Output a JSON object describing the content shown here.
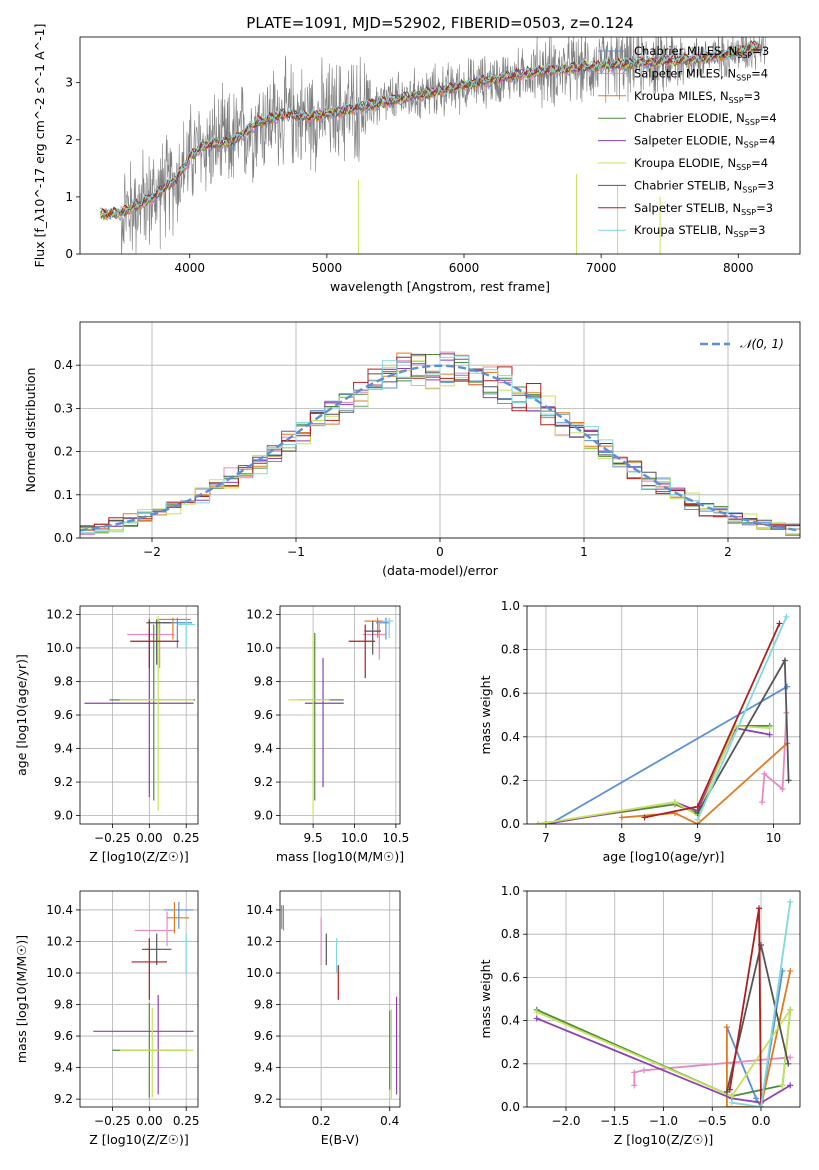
{
  "title": "PLATE=1091, MJD=52902, FIBERID=0503, z=0.124",
  "colors": {
    "Chabrier MILES": "#5b8fd6",
    "Salpeter MILES": "#e58ac2",
    "Kroupa MILES": "#e07b1f",
    "Chabrier ELODIE": "#4f8a3c",
    "Salpeter ELODIE": "#8e3fb5",
    "Kroupa ELODIE": "#c4e35a",
    "Chabrier STELIB": "#555555",
    "Salpeter STELIB": "#b01f1f",
    "Kroupa STELIB": "#7fd9dc",
    "data": "#7f7f7f",
    "normal": "#5b8fd6"
  },
  "chart_data": [
    {
      "id": "spectrum",
      "type": "line",
      "xlabel": "wavelength [Angstrom, rest frame]",
      "ylabel": "Flux [f_λ10^-17 erg cm^-2 s^-1 A^-1]",
      "xlim": [
        3200,
        8450
      ],
      "ylim": [
        0,
        3.8
      ],
      "xticks": [
        4000,
        5000,
        6000,
        7000,
        8000
      ],
      "yticks": [
        0,
        1,
        2,
        3
      ],
      "grid": false,
      "legend_position": "right",
      "legend": [
        {
          "name": "Chabrier MILES",
          "sub": "SSP",
          "n": "3"
        },
        {
          "name": "Salpeter MILES",
          "sub": "SSP",
          "n": "4"
        },
        {
          "name": "Kroupa MILES",
          "sub": "SSP",
          "n": "3"
        },
        {
          "name": "Chabrier ELODIE",
          "sub": "SSP",
          "n": "4"
        },
        {
          "name": "Salpeter ELODIE",
          "sub": "SSP",
          "n": "4"
        },
        {
          "name": "Kroupa ELODIE",
          "sub": "SSP",
          "n": "4"
        },
        {
          "name": "Chabrier STELIB",
          "sub": "SSP",
          "n": "3"
        },
        {
          "name": "Salpeter STELIB",
          "sub": "SSP",
          "n": "3"
        },
        {
          "name": "Kroupa STELIB",
          "sub": "SSP",
          "n": "3"
        }
      ],
      "model_curve": {
        "x": [
          3350,
          3500,
          3700,
          3900,
          4000,
          4100,
          4300,
          4500,
          4700,
          4860,
          5000,
          5200,
          5500,
          5800,
          6000,
          6300,
          6550,
          6800,
          7000,
          7300,
          7600,
          7800,
          8000,
          8150
        ],
        "y": [
          0.7,
          0.72,
          0.95,
          1.3,
          1.7,
          1.9,
          1.95,
          2.3,
          2.45,
          2.4,
          2.45,
          2.55,
          2.7,
          2.85,
          2.95,
          3.1,
          3.2,
          3.25,
          3.3,
          3.35,
          3.4,
          3.45,
          3.55,
          3.65
        ]
      }
    },
    {
      "id": "residuals",
      "type": "line",
      "xlabel": "(data-model)/error",
      "ylabel": "Normed distribution",
      "xlim": [
        -2.5,
        2.5
      ],
      "ylim": [
        0,
        0.5
      ],
      "xticks": [
        -2,
        -1,
        0,
        1,
        2
      ],
      "yticks": [
        0.0,
        0.1,
        0.2,
        0.3,
        0.4
      ],
      "grid": true,
      "legend_position": "top-right",
      "legend_label": "𝒩(0, 1)",
      "bin_width": 0.1
    },
    {
      "id": "age_vs_Z",
      "type": "scatter",
      "xlabel": "Z [log10(Z/Z☉)]",
      "ylabel": "age  [log10(age/yr)]",
      "xlim": [
        -0.47,
        0.33
      ],
      "ylim": [
        8.95,
        10.25
      ],
      "xticks": [
        -0.25,
        0.0,
        0.25
      ],
      "yticks": [
        9.0,
        9.2,
        9.4,
        9.6,
        9.8,
        10.0,
        10.2
      ],
      "grid": true,
      "points": [
        {
          "model": "Chabrier MILES",
          "x": 0.19,
          "y": 10.15,
          "xerr": [
            0.1,
            0.1
          ],
          "yerr": [
            0.15,
            0.03
          ]
        },
        {
          "model": "Salpeter MILES",
          "x": 0.07,
          "y": 10.08,
          "xerr": [
            0.22,
            0.1
          ],
          "yerr": [
            0.2,
            0.08
          ]
        },
        {
          "model": "Kroupa MILES",
          "x": 0.16,
          "y": 10.17,
          "xerr": [
            0.1,
            0.12
          ],
          "yerr": [
            0.12,
            0.01
          ]
        },
        {
          "model": "Chabrier ELODIE",
          "x": 0.03,
          "y": 9.69,
          "xerr": [
            0.3,
            0.28
          ],
          "yerr": [
            0.6,
            0.45
          ]
        },
        {
          "model": "Salpeter ELODIE",
          "x": 0.0,
          "y": 9.67,
          "xerr": [
            0.44,
            0.3
          ],
          "yerr": [
            0.56,
            0.45
          ]
        },
        {
          "model": "Kroupa ELODIE",
          "x": 0.06,
          "y": 9.69,
          "xerr": [
            0.26,
            0.24
          ],
          "yerr": [
            0.66,
            0.5
          ]
        },
        {
          "model": "Chabrier STELIB",
          "x": 0.05,
          "y": 10.15,
          "xerr": [
            0.07,
            0.1
          ],
          "yerr": [
            0.25,
            0.02
          ]
        },
        {
          "model": "Salpeter STELIB",
          "x": 0.0,
          "y": 10.04,
          "xerr": [
            0.13,
            0.2
          ],
          "yerr": [
            0.16,
            0.13
          ]
        },
        {
          "model": "Kroupa STELIB",
          "x": 0.25,
          "y": 10.14,
          "xerr": [
            0.06,
            0.06
          ],
          "yerr": [
            0.15,
            0.03
          ]
        }
      ]
    },
    {
      "id": "age_vs_mass",
      "type": "scatter",
      "xlabel": "mass [log10(M/M☉)]",
      "ylabel": "",
      "xlim": [
        9.1,
        10.55
      ],
      "ylim": [
        8.95,
        10.25
      ],
      "xticks": [
        9.5,
        10.0,
        10.5
      ],
      "yticks": [
        9.0,
        9.2,
        9.4,
        9.6,
        9.8,
        10.0,
        10.2
      ],
      "grid": true,
      "points": [
        {
          "model": "Chabrier MILES",
          "x": 10.38,
          "y": 10.15,
          "xerr": [
            0.12,
            0.05
          ],
          "yerr": [
            0.1,
            0.03
          ]
        },
        {
          "model": "Salpeter MILES",
          "x": 10.3,
          "y": 10.08,
          "xerr": [
            0.2,
            0.07
          ],
          "yerr": [
            0.15,
            0.08
          ]
        },
        {
          "model": "Kroupa MILES",
          "x": 10.28,
          "y": 10.16,
          "xerr": [
            0.16,
            0.1
          ],
          "yerr": [
            0.1,
            0.02
          ]
        },
        {
          "model": "Chabrier ELODIE",
          "x": 9.52,
          "y": 9.69,
          "xerr": [
            0.2,
            0.35
          ],
          "yerr": [
            0.6,
            0.4
          ]
        },
        {
          "model": "Salpeter ELODIE",
          "x": 9.62,
          "y": 9.67,
          "xerr": [
            0.22,
            0.25
          ],
          "yerr": [
            0.5,
            0.27
          ]
        },
        {
          "model": "Kroupa ELODIE",
          "x": 9.5,
          "y": 9.69,
          "xerr": [
            0.3,
            0.2
          ],
          "yerr": [
            0.7,
            0.4
          ]
        },
        {
          "model": "Chabrier STELIB",
          "x": 10.22,
          "y": 10.1,
          "xerr": [
            0.1,
            0.1
          ],
          "yerr": [
            0.14,
            0.06
          ]
        },
        {
          "model": "Salpeter STELIB",
          "x": 10.13,
          "y": 10.04,
          "xerr": [
            0.2,
            0.12
          ],
          "yerr": [
            0.22,
            0.1
          ]
        },
        {
          "model": "Kroupa STELIB",
          "x": 10.42,
          "y": 10.16,
          "xerr": [
            0.08,
            0.05
          ],
          "yerr": [
            0.1,
            0.02
          ]
        }
      ]
    },
    {
      "id": "weight_vs_age",
      "type": "line",
      "xlabel": "age  [log10(age/yr)]",
      "ylabel": "mass weight",
      "xlim": [
        6.75,
        10.35
      ],
      "ylim": [
        0,
        1.0
      ],
      "xticks": [
        7,
        8,
        9,
        10
      ],
      "yticks": [
        0.0,
        0.2,
        0.4,
        0.6,
        0.8,
        1.0
      ],
      "grid": true,
      "series": [
        {
          "model": "Chabrier MILES",
          "x": [
            7.05,
            10.18
          ],
          "y": [
            0.0,
            0.63
          ]
        },
        {
          "model": "Salpeter MILES",
          "x": [
            9.85,
            9.88,
            10.12,
            10.17
          ],
          "y": [
            0.1,
            0.23,
            0.16,
            0.51
          ]
        },
        {
          "model": "Kroupa MILES",
          "x": [
            8.0,
            8.7,
            9.0,
            10.18
          ],
          "y": [
            0.03,
            0.05,
            0.0,
            0.37
          ]
        },
        {
          "model": "Chabrier ELODIE",
          "x": [
            6.9,
            8.7,
            9.0,
            9.5,
            9.95
          ],
          "y": [
            0.0,
            0.09,
            0.05,
            0.45,
            0.45
          ]
        },
        {
          "model": "Salpeter ELODIE",
          "x": [
            7.0,
            8.7,
            9.0,
            9.5,
            9.95
          ],
          "y": [
            0.0,
            0.1,
            0.06,
            0.44,
            0.41
          ]
        },
        {
          "model": "Kroupa ELODIE",
          "x": [
            6.9,
            8.7,
            9.0,
            9.5,
            9.95
          ],
          "y": [
            0.0,
            0.1,
            0.04,
            0.45,
            0.44
          ]
        },
        {
          "model": "Chabrier STELIB",
          "x": [
            9.0,
            10.15,
            10.2
          ],
          "y": [
            0.05,
            0.75,
            0.2
          ]
        },
        {
          "model": "Salpeter STELIB",
          "x": [
            8.3,
            9.0,
            10.08
          ],
          "y": [
            0.03,
            0.08,
            0.92
          ]
        },
        {
          "model": "Kroupa STELIB",
          "x": [
            9.0,
            10.17
          ],
          "y": [
            0.02,
            0.95
          ]
        }
      ]
    },
    {
      "id": "mass_vs_Z",
      "type": "scatter",
      "xlabel": "Z [log10(Z/Z☉)]",
      "ylabel": "mass [log10(M/M☉)]",
      "xlim": [
        -0.47,
        0.33
      ],
      "ylim": [
        9.15,
        10.52
      ],
      "xticks": [
        -0.25,
        0.0,
        0.25
      ],
      "yticks": [
        9.2,
        9.4,
        9.6,
        9.8,
        10.0,
        10.2,
        10.4
      ],
      "grid": true,
      "points": [
        {
          "model": "Chabrier MILES",
          "x": 0.2,
          "y": 10.4,
          "xerr": [
            0.1,
            0.1
          ],
          "yerr": [
            0.12,
            0.05
          ]
        },
        {
          "model": "Salpeter MILES",
          "x": 0.12,
          "y": 10.27,
          "xerr": [
            0.22,
            0.05
          ],
          "yerr": [
            0.1,
            0.12
          ]
        },
        {
          "model": "Kroupa MILES",
          "x": 0.17,
          "y": 10.35,
          "xerr": [
            0.05,
            0.1
          ],
          "yerr": [
            0.1,
            0.1
          ]
        },
        {
          "model": "Chabrier ELODIE",
          "x": 0.0,
          "y": 9.51,
          "xerr": [
            0.25,
            0.25
          ],
          "yerr": [
            0.3,
            0.3
          ]
        },
        {
          "model": "Salpeter ELODIE",
          "x": 0.06,
          "y": 9.63,
          "xerr": [
            0.44,
            0.24
          ],
          "yerr": [
            0.4,
            0.23
          ]
        },
        {
          "model": "Kroupa ELODIE",
          "x": 0.02,
          "y": 9.51,
          "xerr": [
            0.22,
            0.28
          ],
          "yerr": [
            0.3,
            0.27
          ]
        },
        {
          "model": "Chabrier STELIB",
          "x": 0.05,
          "y": 10.15,
          "xerr": [
            0.1,
            0.1
          ],
          "yerr": [
            0.1,
            0.1
          ]
        },
        {
          "model": "Salpeter STELIB",
          "x": 0.0,
          "y": 10.07,
          "xerr": [
            0.12,
            0.12
          ],
          "yerr": [
            0.24,
            0.15
          ]
        },
        {
          "model": "Kroupa STELIB",
          "x": 0.25,
          "y": 10.2,
          "xerr": [
            0.05,
            0.05
          ],
          "yerr": [
            0.2,
            0.05
          ]
        }
      ]
    },
    {
      "id": "mass_vs_ebv",
      "type": "scatter",
      "xlabel": "E(B-V)",
      "ylabel": "",
      "xlim": [
        0.08,
        0.43
      ],
      "ylim": [
        9.15,
        10.52
      ],
      "xticks": [
        0.2,
        0.4
      ],
      "yticks": [
        9.2,
        9.4,
        9.6,
        9.8,
        10.0,
        10.2,
        10.4
      ],
      "grid": true,
      "points": [
        {
          "model": "Chabrier MILES",
          "x": 0.085,
          "y": 10.36,
          "xerr": [
            0,
            0
          ],
          "yerr": [
            0.08,
            0.07
          ]
        },
        {
          "model": "Salpeter MILES",
          "x": 0.2,
          "y": 10.2,
          "xerr": [
            0,
            0
          ],
          "yerr": [
            0.15,
            0.15
          ]
        },
        {
          "model": "Kroupa MILES",
          "x": 0.09,
          "y": 10.35,
          "xerr": [
            0,
            0
          ],
          "yerr": [
            0.08,
            0.08
          ]
        },
        {
          "model": "Chabrier ELODIE",
          "x": 0.4,
          "y": 9.51,
          "xerr": [
            0,
            0
          ],
          "yerr": [
            0.25,
            0.25
          ]
        },
        {
          "model": "Salpeter ELODIE",
          "x": 0.42,
          "y": 9.55,
          "xerr": [
            0,
            0
          ],
          "yerr": [
            0.32,
            0.3
          ]
        },
        {
          "model": "Kroupa ELODIE",
          "x": 0.405,
          "y": 9.5,
          "xerr": [
            0,
            0
          ],
          "yerr": [
            0.3,
            0.27
          ]
        },
        {
          "model": "Chabrier STELIB",
          "x": 0.215,
          "y": 10.15,
          "xerr": [
            0,
            0
          ],
          "yerr": [
            0.1,
            0.1
          ]
        },
        {
          "model": "Salpeter STELIB",
          "x": 0.25,
          "y": 9.95,
          "xerr": [
            0,
            0
          ],
          "yerr": [
            0.12,
            0.1
          ]
        },
        {
          "model": "Kroupa STELIB",
          "x": 0.245,
          "y": 10.1,
          "xerr": [
            0,
            0
          ],
          "yerr": [
            0.1,
            0.12
          ]
        }
      ]
    },
    {
      "id": "weight_vs_Z",
      "type": "line",
      "xlabel": "Z [log10(Z/Z☉)]",
      "ylabel": "mass weight",
      "xlim": [
        -2.4,
        0.4
      ],
      "ylim": [
        0,
        1.0
      ],
      "xticks": [
        -2.0,
        -1.5,
        -1.0,
        -0.5,
        0.0
      ],
      "yticks": [
        0.0,
        0.2,
        0.4,
        0.6,
        0.8,
        1.0
      ],
      "grid": true,
      "series": [
        {
          "model": "Chabrier MILES",
          "x": [
            -0.35,
            -0.05,
            0.0,
            0.22
          ],
          "y": [
            0.37,
            0.04,
            0.0,
            0.63
          ]
        },
        {
          "model": "Salpeter MILES",
          "x": [
            -1.3,
            -1.3,
            -1.2,
            0.3
          ],
          "y": [
            0.1,
            0.16,
            0.17,
            0.23
          ]
        },
        {
          "model": "Kroupa MILES",
          "x": [
            -0.35,
            -0.35,
            0.0,
            0.3
          ],
          "y": [
            0.37,
            0.0,
            0.0,
            0.63
          ]
        },
        {
          "model": "Chabrier ELODIE",
          "x": [
            -2.3,
            -0.3,
            0.22,
            0.3
          ],
          "y": [
            0.45,
            0.05,
            0.1,
            0.45
          ]
        },
        {
          "model": "Salpeter ELODIE",
          "x": [
            -2.3,
            -0.3,
            0.0,
            0.3
          ],
          "y": [
            0.41,
            0.04,
            0.02,
            0.1
          ]
        },
        {
          "model": "Kroupa ELODIE",
          "x": [
            -2.3,
            -0.3,
            0.3,
            0.22
          ],
          "y": [
            0.44,
            0.05,
            0.45,
            0.1
          ]
        },
        {
          "model": "Chabrier STELIB",
          "x": [
            -0.35,
            0.0,
            0.28
          ],
          "y": [
            0.07,
            0.75,
            0.2
          ]
        },
        {
          "model": "Salpeter STELIB",
          "x": [
            -0.32,
            -0.02,
            0.0
          ],
          "y": [
            0.08,
            0.92,
            0.0
          ]
        },
        {
          "model": "Kroupa STELIB",
          "x": [
            -0.3,
            0.0,
            0.3
          ],
          "y": [
            0.02,
            0.0,
            0.95
          ]
        }
      ]
    }
  ]
}
